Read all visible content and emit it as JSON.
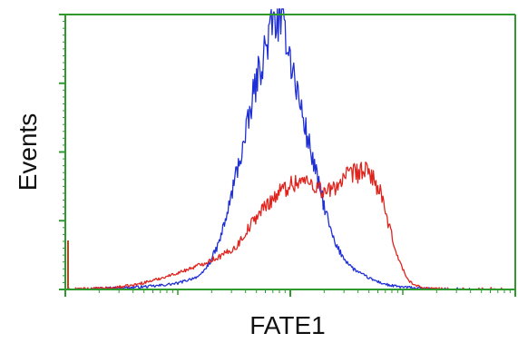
{
  "chart_data": {
    "type": "area",
    "title": "",
    "xlabel": "FATE1",
    "ylabel": "Events",
    "xlim": [
      0,
      1000
    ],
    "ylim": [
      0,
      400
    ],
    "grid": false,
    "legend": "none",
    "x_major_ticks": [
      0,
      500,
      1000
    ],
    "y_ticks": [
      0,
      100,
      200,
      300,
      400
    ],
    "colors": {
      "frame": "#2e9a2e",
      "ticks": "#2e9a2e",
      "series_blue": "#1f2fd6",
      "series_red": "#e0231c"
    },
    "series": [
      {
        "color": "#1f2fd6",
        "x": [
          0,
          50,
          100,
          150,
          200,
          250,
          300,
          320,
          340,
          360,
          380,
          400,
          420,
          440,
          460,
          480,
          490,
          500,
          510,
          520,
          530,
          540,
          550,
          560,
          570,
          580,
          590,
          600,
          620,
          640,
          660,
          680,
          700,
          720,
          740,
          760,
          780,
          800,
          850,
          900,
          1000
        ],
        "y": [
          0,
          1,
          2,
          3,
          5,
          9,
          20,
          38,
          65,
          110,
          170,
          220,
          290,
          340,
          385,
          400,
          375,
          340,
          305,
          275,
          245,
          215,
          190,
          160,
          135,
          110,
          85,
          65,
          45,
          30,
          22,
          15,
          10,
          6,
          4,
          3,
          2,
          1,
          0,
          0,
          0
        ]
      },
      {
        "color": "#e0231c",
        "x": [
          0,
          50,
          100,
          150,
          200,
          250,
          300,
          350,
          380,
          400,
          420,
          440,
          460,
          480,
          500,
          520,
          540,
          560,
          580,
          600,
          620,
          640,
          660,
          680,
          700,
          720,
          740,
          760,
          780,
          800,
          850,
          900,
          1000
        ],
        "y": [
          0,
          1,
          2,
          6,
          14,
          24,
          36,
          50,
          62,
          82,
          102,
          118,
          132,
          144,
          152,
          158,
          156,
          150,
          140,
          150,
          162,
          168,
          172,
          168,
          140,
          90,
          45,
          15,
          5,
          2,
          0,
          0,
          0
        ]
      }
    ]
  }
}
